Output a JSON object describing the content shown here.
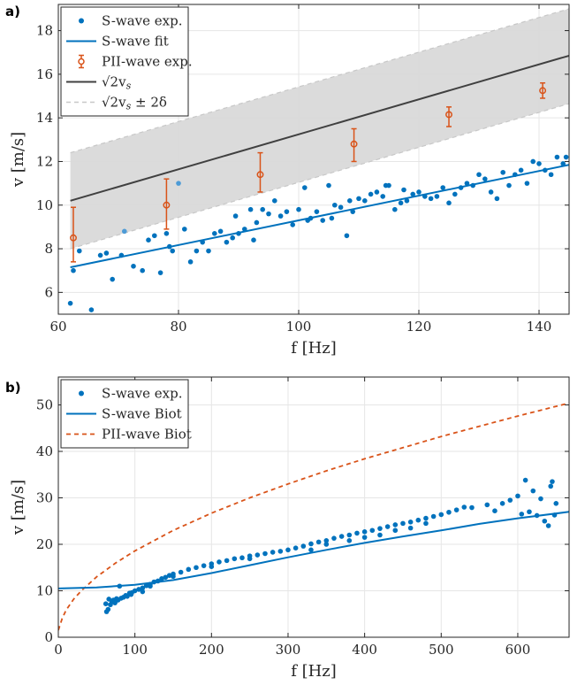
{
  "colors": {
    "s_wave": "#0072BD",
    "pii_wave": "#D95319",
    "reference": "#404040",
    "band_fill": "#d9d9d9",
    "band_edge": "#c8c8c8",
    "grid": "#e6e6e6"
  },
  "chart_data": [
    {
      "panel_label": "a)",
      "type": "scatter",
      "xlabel": "f [Hz]",
      "ylabel": "v [m/s]",
      "xlim": [
        60,
        145
      ],
      "ylim": [
        5,
        19.2
      ],
      "xticks": [
        60,
        80,
        100,
        120,
        140
      ],
      "yticks": [
        6,
        8,
        10,
        12,
        14,
        16,
        18
      ],
      "grid": true,
      "legend_position": "top-left",
      "legend": [
        {
          "label": "S-wave exp.",
          "style": "marker"
        },
        {
          "label": "S-wave fit",
          "style": "line"
        },
        {
          "label": "PII-wave exp.",
          "style": "errorbar"
        },
        {
          "label": "√2v",
          "sub": "s",
          "style": "line-dark"
        },
        {
          "label": "√2v",
          "sub": "s",
          "suffix": " ± 2δ",
          "style": "line-dashed"
        }
      ],
      "series": [
        {
          "name": "S-wave exp.",
          "points": [
            [
              62,
              5.5
            ],
            [
              62.5,
              7.0
            ],
            [
              63.5,
              7.9
            ],
            [
              65.5,
              5.2
            ],
            [
              67,
              7.7
            ],
            [
              68,
              7.8
            ],
            [
              69,
              6.6
            ],
            [
              70.5,
              7.7
            ],
            [
              71,
              8.8
            ],
            [
              72.5,
              7.2
            ],
            [
              74,
              7.0
            ],
            [
              75,
              8.4
            ],
            [
              76,
              8.6
            ],
            [
              77,
              6.9
            ],
            [
              78,
              8.7
            ],
            [
              78.5,
              8.1
            ],
            [
              79,
              7.9
            ],
            [
              80,
              11.0
            ],
            [
              81,
              8.9
            ],
            [
              82,
              7.4
            ],
            [
              83,
              7.9
            ],
            [
              84,
              8.3
            ],
            [
              85,
              7.9
            ],
            [
              86,
              8.7
            ],
            [
              87,
              8.8
            ],
            [
              88,
              8.3
            ],
            [
              89,
              8.5
            ],
            [
              89.5,
              9.5
            ],
            [
              90,
              8.7
            ],
            [
              91,
              8.9
            ],
            [
              92,
              9.8
            ],
            [
              92.5,
              8.4
            ],
            [
              93,
              9.2
            ],
            [
              94,
              9.8
            ],
            [
              95,
              9.6
            ],
            [
              96,
              10.2
            ],
            [
              97,
              9.5
            ],
            [
              98,
              9.7
            ],
            [
              99,
              9.1
            ],
            [
              100,
              9.8
            ],
            [
              101,
              10.8
            ],
            [
              101.5,
              9.3
            ],
            [
              102,
              9.4
            ],
            [
              103,
              9.7
            ],
            [
              104,
              9.3
            ],
            [
              105,
              10.9
            ],
            [
              105.5,
              9.4
            ],
            [
              106,
              10.0
            ],
            [
              107,
              9.9
            ],
            [
              108,
              8.6
            ],
            [
              108.5,
              10.2
            ],
            [
              109,
              9.7
            ],
            [
              110,
              10.3
            ],
            [
              111,
              10.2
            ],
            [
              112,
              10.5
            ],
            [
              113,
              10.6
            ],
            [
              114,
              10.4
            ],
            [
              114.5,
              10.9
            ],
            [
              115,
              10.9
            ],
            [
              116,
              9.8
            ],
            [
              117,
              10.1
            ],
            [
              117.5,
              10.7
            ],
            [
              118,
              10.2
            ],
            [
              119,
              10.5
            ],
            [
              120,
              10.6
            ],
            [
              121,
              10.4
            ],
            [
              122,
              10.3
            ],
            [
              123,
              10.4
            ],
            [
              124,
              10.8
            ],
            [
              125,
              10.1
            ],
            [
              126,
              10.5
            ],
            [
              127,
              10.8
            ],
            [
              128,
              11.0
            ],
            [
              129,
              10.9
            ],
            [
              130,
              11.4
            ],
            [
              131,
              11.2
            ],
            [
              132,
              10.6
            ],
            [
              133,
              10.3
            ],
            [
              134,
              11.5
            ],
            [
              135,
              10.9
            ],
            [
              136,
              11.4
            ],
            [
              137,
              11.6
            ],
            [
              138,
              11.0
            ],
            [
              139,
              12.0
            ],
            [
              140,
              11.9
            ],
            [
              141,
              11.6
            ],
            [
              142,
              11.4
            ],
            [
              143,
              12.2
            ],
            [
              144,
              11.9
            ],
            [
              144.5,
              12.2
            ]
          ]
        },
        {
          "name": "S-wave fit",
          "points": [
            [
              62,
              7.15
            ],
            [
              145,
              11.85
            ]
          ]
        },
        {
          "name": "PII-wave exp.",
          "points": [
            [
              62.5,
              8.5,
              7.4,
              9.9
            ],
            [
              78,
              10.0,
              8.9,
              11.2
            ],
            [
              93.6,
              11.4,
              10.6,
              12.4
            ],
            [
              109.2,
              12.8,
              12.0,
              13.5
            ],
            [
              125,
              14.15,
              13.6,
              14.5
            ],
            [
              140.6,
              15.25,
              14.9,
              15.6
            ]
          ]
        },
        {
          "name": "√2v_s",
          "points": [
            [
              62,
              10.2
            ],
            [
              145,
              16.85
            ]
          ]
        },
        {
          "name": "√2v_s ± 2δ",
          "upper": [
            [
              62,
              12.4
            ],
            [
              145,
              19.0
            ]
          ],
          "lower": [
            [
              62,
              8.0
            ],
            [
              145,
              14.65
            ]
          ]
        }
      ]
    },
    {
      "panel_label": "b)",
      "type": "scatter",
      "xlabel": "f [Hz]",
      "ylabel": "v [m/s]",
      "xlim": [
        0,
        667
      ],
      "ylim": [
        0,
        56
      ],
      "xticks": [
        0,
        100,
        200,
        300,
        400,
        500,
        600
      ],
      "yticks": [
        0,
        10,
        20,
        30,
        40,
        50
      ],
      "grid": true,
      "legend_position": "top-left",
      "legend": [
        {
          "label": "S-wave exp.",
          "style": "marker"
        },
        {
          "label": "S-wave Biot",
          "style": "line"
        },
        {
          "label": "PII-wave Biot",
          "style": "line-dashed-orange"
        }
      ],
      "series": [
        {
          "name": "S-wave exp.",
          "note": "dense band of measured points",
          "points": [
            [
              62,
              7.2
            ],
            [
              63,
              5.5
            ],
            [
              65,
              6.0
            ],
            [
              66,
              8.2
            ],
            [
              68,
              7.0
            ],
            [
              70,
              7.6
            ],
            [
              72,
              8.0
            ],
            [
              74,
              7.4
            ],
            [
              76,
              8.3
            ],
            [
              78,
              8.0
            ],
            [
              80,
              11.0
            ],
            [
              82,
              8.4
            ],
            [
              85,
              8.6
            ],
            [
              88,
              9.0
            ],
            [
              90,
              8.8
            ],
            [
              93,
              9.5
            ],
            [
              96,
              9.6
            ],
            [
              100,
              10.0
            ],
            [
              105,
              10.3
            ],
            [
              110,
              10.6
            ],
            [
              115,
              11.1
            ],
            [
              120,
              11.4
            ],
            [
              125,
              11.9
            ],
            [
              130,
              12.1
            ],
            [
              135,
              12.6
            ],
            [
              140,
              12.9
            ],
            [
              145,
              13.3
            ],
            [
              150,
              13.6
            ],
            [
              160,
              14.0
            ],
            [
              170,
              14.6
            ],
            [
              180,
              15.0
            ],
            [
              190,
              15.4
            ],
            [
              200,
              15.8
            ],
            [
              210,
              16.2
            ],
            [
              220,
              16.5
            ],
            [
              230,
              16.9
            ],
            [
              240,
              17.1
            ],
            [
              250,
              17.5
            ],
            [
              260,
              17.7
            ],
            [
              270,
              18.0
            ],
            [
              280,
              18.3
            ],
            [
              290,
              18.5
            ],
            [
              300,
              18.8
            ],
            [
              310,
              19.2
            ],
            [
              320,
              19.6
            ],
            [
              330,
              20.1
            ],
            [
              340,
              20.5
            ],
            [
              350,
              20.8
            ],
            [
              360,
              21.3
            ],
            [
              370,
              21.7
            ],
            [
              380,
              22.0
            ],
            [
              390,
              22.4
            ],
            [
              400,
              22.7
            ],
            [
              410,
              23.0
            ],
            [
              420,
              23.4
            ],
            [
              430,
              23.8
            ],
            [
              440,
              24.2
            ],
            [
              450,
              24.5
            ],
            [
              460,
              24.8
            ],
            [
              470,
              25.2
            ],
            [
              480,
              25.6
            ],
            [
              490,
              26.0
            ],
            [
              500,
              26.4
            ],
            [
              510,
              26.9
            ],
            [
              520,
              27.4
            ],
            [
              530,
              28.0
            ],
            [
              540,
              27.9
            ],
            [
              560,
              28.5
            ],
            [
              570,
              27.2
            ],
            [
              580,
              28.8
            ],
            [
              590,
              29.5
            ],
            [
              600,
              30.4
            ],
            [
              605,
              26.5
            ],
            [
              610,
              33.8
            ],
            [
              615,
              27.0
            ],
            [
              620,
              31.5
            ],
            [
              625,
              26.2
            ],
            [
              630,
              29.8
            ],
            [
              635,
              25.0
            ],
            [
              640,
              24.0
            ],
            [
              643,
              32.5
            ],
            [
              645,
              33.5
            ],
            [
              648,
              26.3
            ],
            [
              650,
              28.8
            ],
            [
              330,
              18.8
            ],
            [
              350,
              20.0
            ],
            [
              420,
              22.0
            ],
            [
              440,
              23.0
            ],
            [
              460,
              23.5
            ],
            [
              480,
              24.5
            ],
            [
              380,
              20.8
            ],
            [
              400,
              21.5
            ],
            [
              250,
              16.9
            ],
            [
              200,
              15.2
            ],
            [
              150,
              13.1
            ],
            [
              120,
              11.0
            ],
            [
              110,
              9.8
            ],
            [
              95,
              9.2
            ]
          ]
        },
        {
          "name": "S-wave Biot",
          "points": [
            [
              0,
              10.5
            ],
            [
              50,
              10.7
            ],
            [
              100,
              11.3
            ],
            [
              150,
              12.3
            ],
            [
              200,
              13.8
            ],
            [
              250,
              15.5
            ],
            [
              300,
              17.2
            ],
            [
              350,
              18.8
            ],
            [
              400,
              20.3
            ],
            [
              450,
              21.7
            ],
            [
              500,
              23.0
            ],
            [
              550,
              24.4
            ],
            [
              600,
              25.6
            ],
            [
              667,
              27.0
            ]
          ]
        },
        {
          "name": "PII-wave Biot",
          "points": [
            [
              0,
              1.5
            ],
            [
              5,
              4.0
            ],
            [
              10,
              5.8
            ],
            [
              20,
              8.2
            ],
            [
              30,
              10.0
            ],
            [
              50,
              13.0
            ],
            [
              75,
              16.0
            ],
            [
              100,
              18.6
            ],
            [
              150,
              23.0
            ],
            [
              200,
              26.7
            ],
            [
              250,
              30.0
            ],
            [
              300,
              33.0
            ],
            [
              350,
              35.8
            ],
            [
              400,
              38.4
            ],
            [
              450,
              40.8
            ],
            [
              500,
              43.2
            ],
            [
              550,
              45.4
            ],
            [
              600,
              47.6
            ],
            [
              667,
              50.4
            ]
          ]
        }
      ]
    }
  ]
}
